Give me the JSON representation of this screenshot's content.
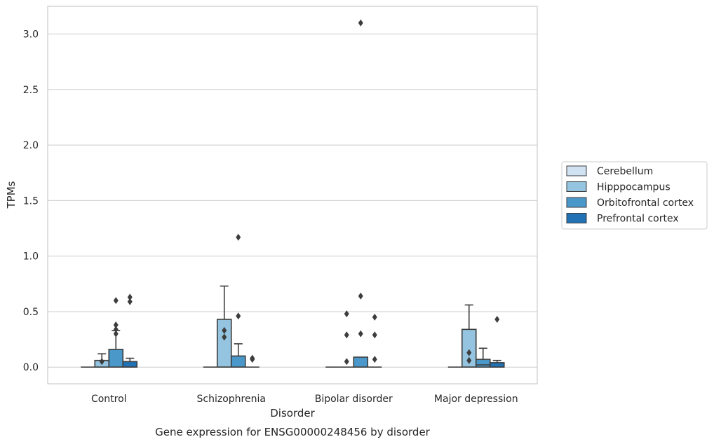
{
  "chart_data": {
    "type": "box",
    "title": "",
    "caption": "Gene expression for ENSG00000248456 by disorder",
    "xlabel": "Disorder",
    "ylabel": "TPMs",
    "ylim": [
      -0.15,
      3.25
    ],
    "yticks": [
      0.0,
      0.5,
      1.0,
      1.5,
      2.0,
      2.5,
      3.0
    ],
    "ytick_labels": [
      "0.0",
      "0.5",
      "1.0",
      "1.5",
      "2.0",
      "2.5",
      "3.0"
    ],
    "grid": "horizontal",
    "legend_position": "right",
    "categories": [
      "Control",
      "Schizophrenia",
      "Bipolar disorder",
      "Major depression"
    ],
    "series": [
      {
        "name": "Cerebellum",
        "color": "#d0e1f2",
        "boxes": [
          {
            "q1": 0.0,
            "median": 0.0,
            "q3": 0.0,
            "whisker_low": 0.0,
            "whisker_high": 0.0,
            "outliers": []
          },
          {
            "q1": 0.0,
            "median": 0.0,
            "q3": 0.0,
            "whisker_low": 0.0,
            "whisker_high": 0.0,
            "outliers": []
          },
          {
            "q1": 0.0,
            "median": 0.0,
            "q3": 0.0,
            "whisker_low": 0.0,
            "whisker_high": 0.0,
            "outliers": []
          },
          {
            "q1": 0.0,
            "median": 0.0,
            "q3": 0.0,
            "whisker_low": 0.0,
            "whisker_high": 0.0,
            "outliers": []
          }
        ]
      },
      {
        "name": "Hipppocampus",
        "color": "#94c4df",
        "boxes": [
          {
            "q1": 0.0,
            "median": 0.0,
            "q3": 0.06,
            "whisker_low": 0.0,
            "whisker_high": 0.12,
            "outliers": [
              0.05
            ]
          },
          {
            "q1": 0.0,
            "median": 0.0,
            "q3": 0.43,
            "whisker_low": 0.0,
            "whisker_high": 0.73,
            "outliers": [
              0.27,
              0.33
            ]
          },
          {
            "q1": 0.0,
            "median": 0.0,
            "q3": 0.0,
            "whisker_low": 0.0,
            "whisker_high": 0.0,
            "outliers": [
              0.05,
              0.29,
              0.48
            ]
          },
          {
            "q1": 0.0,
            "median": 0.0,
            "q3": 0.34,
            "whisker_low": 0.0,
            "whisker_high": 0.56,
            "outliers": [
              0.06,
              0.13
            ]
          }
        ]
      },
      {
        "name": "Orbitofrontal cortex",
        "color": "#4a98c9",
        "boxes": [
          {
            "q1": 0.0,
            "median": 0.0,
            "q3": 0.16,
            "whisker_low": 0.0,
            "whisker_high": 0.33,
            "outliers": [
              0.3,
              0.34,
              0.38,
              0.6
            ]
          },
          {
            "q1": 0.0,
            "median": 0.0,
            "q3": 0.1,
            "whisker_low": 0.0,
            "whisker_high": 0.21,
            "outliers": [
              0.46,
              1.17
            ]
          },
          {
            "q1": 0.0,
            "median": 0.0,
            "q3": 0.09,
            "whisker_low": 0.0,
            "whisker_high": 0.09,
            "outliers": [
              0.3,
              0.64,
              3.1
            ]
          },
          {
            "q1": 0.0,
            "median": 0.02,
            "q3": 0.07,
            "whisker_low": 0.0,
            "whisker_high": 0.17,
            "outliers": []
          }
        ]
      },
      {
        "name": "Prefrontal cortex",
        "color": "#2171b5",
        "boxes": [
          {
            "q1": 0.0,
            "median": 0.0,
            "q3": 0.05,
            "whisker_low": 0.0,
            "whisker_high": 0.08,
            "outliers": [
              0.59,
              0.63
            ]
          },
          {
            "q1": 0.0,
            "median": 0.0,
            "q3": 0.0,
            "whisker_low": 0.0,
            "whisker_high": 0.0,
            "outliers": [
              0.07,
              0.08
            ]
          },
          {
            "q1": 0.0,
            "median": 0.0,
            "q3": 0.0,
            "whisker_low": 0.0,
            "whisker_high": 0.0,
            "outliers": [
              0.07,
              0.29,
              0.45
            ]
          },
          {
            "q1": 0.0,
            "median": 0.0,
            "q3": 0.04,
            "whisker_low": 0.0,
            "whisker_high": 0.06,
            "outliers": [
              0.43
            ]
          }
        ]
      }
    ]
  }
}
